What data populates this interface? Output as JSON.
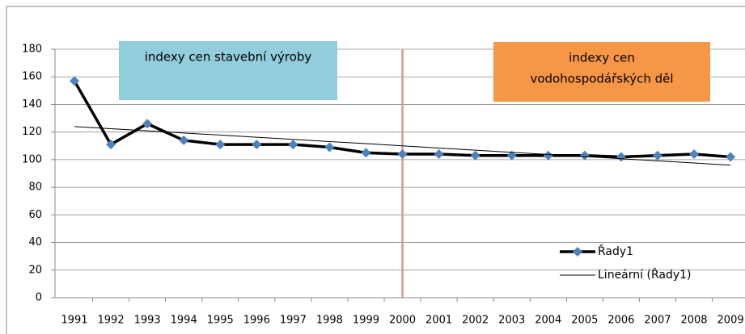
{
  "chart_data": {
    "type": "line",
    "categories": [
      "1991",
      "1992",
      "1993",
      "1994",
      "1995",
      "1996",
      "1997",
      "1998",
      "1999",
      "2000",
      "2001",
      "2002",
      "2003",
      "2004",
      "2005",
      "2006",
      "2007",
      "2008",
      "2009"
    ],
    "series": [
      {
        "name": "Řady1",
        "color": "#000000",
        "marker_color": "#4f81bd",
        "values": [
          157,
          111,
          126,
          114,
          111,
          111,
          111,
          109,
          105,
          104,
          104,
          103,
          103,
          103,
          103,
          102,
          103,
          104,
          102
        ]
      },
      {
        "name": "Lineární (Řady1)",
        "color": "#000000",
        "values": [
          124,
          122.4,
          120.9,
          119.3,
          117.8,
          116.2,
          114.7,
          113.1,
          111.6,
          110,
          108.4,
          106.9,
          105.3,
          103.8,
          102.2,
          100.7,
          99.1,
          97.6,
          96
        ]
      }
    ],
    "ylim": [
      0,
      180
    ],
    "yticks": [
      0,
      20,
      40,
      60,
      80,
      100,
      120,
      140,
      160,
      180
    ],
    "grid": true,
    "legend": "lower right",
    "vline": {
      "category": "2000",
      "color": "#d99694"
    },
    "annotations": [
      {
        "lines": [
          "indexy cen stavební výroby"
        ],
        "color": "#92cddc"
      },
      {
        "lines": [
          "indexy cen",
          "vodohospodářských děl"
        ],
        "color": "#f79646"
      }
    ]
  }
}
